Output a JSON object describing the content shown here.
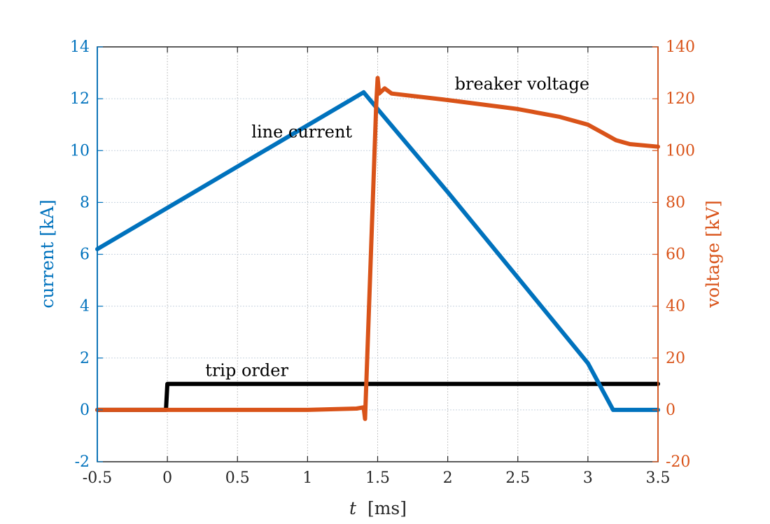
{
  "chart_data": {
    "type": "line",
    "xlabel_var": "t",
    "xlabel_unit": "[ms]",
    "ylabel_left": "current [kA]",
    "ylabel_right": "voltage [kV]",
    "xlim": [
      -0.5,
      3.5
    ],
    "ylim_left": [
      -2,
      14
    ],
    "ylim_right": [
      -20,
      140
    ],
    "x_ticks": [
      "-0.5",
      "0",
      "0.5",
      "1",
      "1.5",
      "2",
      "2.5",
      "3",
      "3.5"
    ],
    "y_ticks_left": [
      "-2",
      "0",
      "2",
      "4",
      "6",
      "8",
      "10",
      "12",
      "14"
    ],
    "y_ticks_right": [
      "-20",
      "0",
      "20",
      "40",
      "60",
      "80",
      "100",
      "120",
      "140"
    ],
    "grid": true,
    "colors": {
      "current": "#0072BD",
      "voltage": "#D95319",
      "trip": "#000000",
      "grid": "#c8d3df"
    },
    "series": [
      {
        "name": "line current",
        "axis": "left",
        "x": [
          -0.5,
          1.4,
          1.5,
          2.0,
          2.5,
          3.0,
          3.18,
          3.5
        ],
        "y": [
          6.2,
          12.25,
          11.6,
          8.4,
          5.1,
          1.8,
          0.0,
          0.0
        ]
      },
      {
        "name": "breaker voltage",
        "axis": "right",
        "x": [
          -0.5,
          0.0,
          1.0,
          1.35,
          1.4,
          1.41,
          1.49,
          1.5,
          1.51,
          1.55,
          1.6,
          2.0,
          2.5,
          2.8,
          3.0,
          3.1,
          3.2,
          3.3,
          3.5
        ],
        "y": [
          0,
          0,
          0,
          0.5,
          1,
          -3.5,
          118,
          128,
          122,
          124,
          122,
          119.5,
          116,
          113,
          110,
          107,
          104,
          102.5,
          101.5
        ]
      },
      {
        "name": "trip order",
        "axis": "left",
        "x": [
          -0.5,
          -0.01,
          0.0,
          3.5
        ],
        "y": [
          0,
          0,
          1,
          1
        ]
      }
    ],
    "annotations": [
      {
        "text": "line current",
        "x": 0.6,
        "y": 10.5
      },
      {
        "text": "breaker voltage",
        "x": 2.05,
        "y": 12.35
      },
      {
        "text": "trip order",
        "x": 0.27,
        "y": 1.3
      }
    ]
  }
}
